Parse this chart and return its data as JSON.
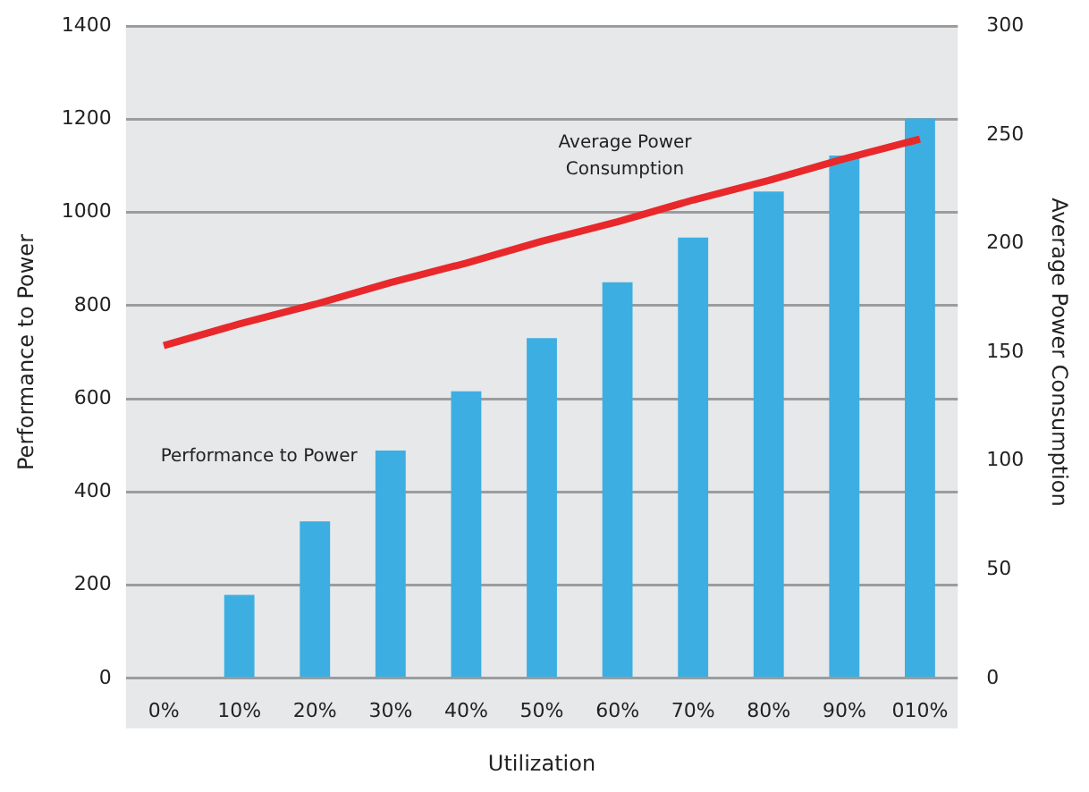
{
  "chart_data": {
    "type": "bar",
    "xlabel": "Utilization",
    "ylabel": "Performance to Power",
    "y2label": "Average Power Consumption",
    "categories": [
      "0%",
      "10%",
      "20%",
      "30%",
      "40%",
      "50%",
      "60%",
      "70%",
      "80%",
      "90%",
      "010%"
    ],
    "series": [
      {
        "name": "Performance to Power",
        "color": "#3daee2",
        "values": [
          0,
          179,
          337,
          489,
          616,
          730,
          850,
          946,
          1045,
          1122,
          1202
        ]
      },
      {
        "name": "Average Power Consumption",
        "type": "line",
        "axis": "y2",
        "color": "#e8282b",
        "values": [
          153,
          163,
          172,
          182,
          191,
          201,
          210,
          220,
          229,
          239,
          248
        ]
      }
    ],
    "ylim": [
      0,
      1400
    ],
    "yticks": [
      0,
      200,
      400,
      600,
      800,
      1000,
      1200,
      1400
    ],
    "y2lim": [
      0,
      300
    ],
    "y2ticks": [
      0,
      50,
      100,
      150,
      200,
      250,
      300
    ],
    "grid": "y",
    "legend": false,
    "marker": "none",
    "line_style": "solid"
  }
}
